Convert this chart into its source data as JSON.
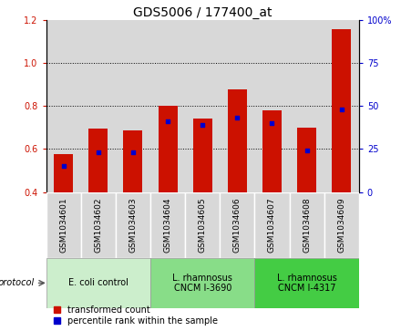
{
  "title": "GDS5006 / 177400_at",
  "samples": [
    "GSM1034601",
    "GSM1034602",
    "GSM1034603",
    "GSM1034604",
    "GSM1034605",
    "GSM1034606",
    "GSM1034607",
    "GSM1034608",
    "GSM1034609"
  ],
  "transformed_count": [
    0.575,
    0.695,
    0.685,
    0.8,
    0.74,
    0.875,
    0.78,
    0.7,
    1.155
  ],
  "percentile_rank": [
    15,
    23,
    23,
    41,
    39,
    43,
    40,
    24,
    48
  ],
  "bar_bottom": 0.4,
  "ylim_left": [
    0.4,
    1.2
  ],
  "ylim_right": [
    0,
    100
  ],
  "yticks_left": [
    0.4,
    0.6,
    0.8,
    1.0,
    1.2
  ],
  "yticks_right": [
    0,
    25,
    50,
    75,
    100
  ],
  "ytick_labels_right": [
    "0",
    "25",
    "50",
    "75",
    "100%"
  ],
  "bar_color": "#cc1100",
  "dot_color": "#0000cc",
  "col_bg_color": "#d8d8d8",
  "groups": [
    {
      "label": "E. coli control",
      "indices": [
        0,
        1,
        2
      ],
      "color": "#cceecc"
    },
    {
      "label": "L. rhamnosus\nCNCM I-3690",
      "indices": [
        3,
        4,
        5
      ],
      "color": "#88dd88"
    },
    {
      "label": "L. rhamnosus\nCNCM I-4317",
      "indices": [
        6,
        7,
        8
      ],
      "color": "#44cc44"
    }
  ],
  "protocol_label": "protocol",
  "legend_bar_label": "transformed count",
  "legend_dot_label": "percentile rank within the sample",
  "bar_width": 0.55,
  "title_fontsize": 10,
  "tick_fontsize": 7,
  "sample_fontsize": 6.5,
  "group_fontsize": 7,
  "legend_fontsize": 7
}
